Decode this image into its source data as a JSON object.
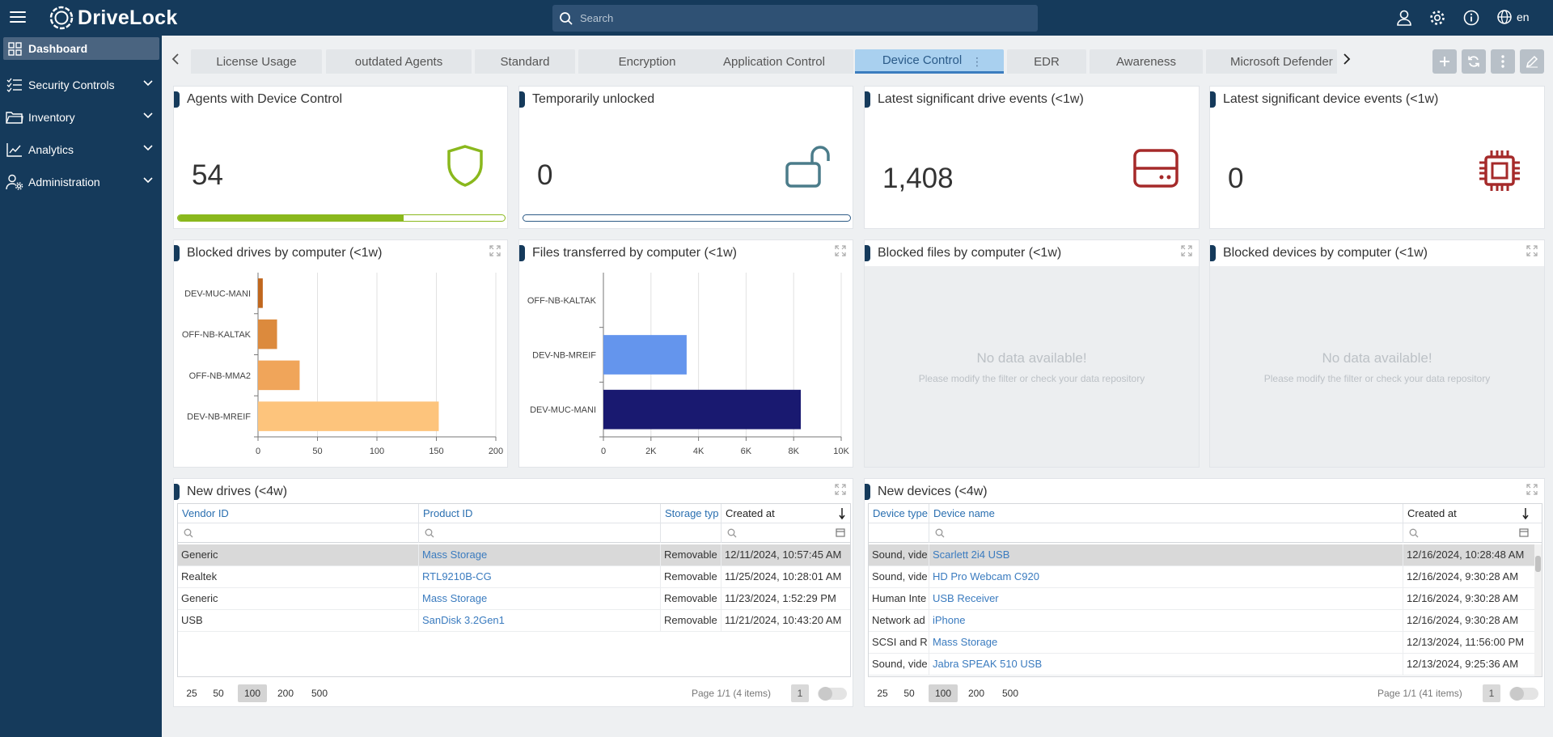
{
  "header": {
    "brand": "DriveLock",
    "search_placeholder": "Search",
    "language": "en",
    "icons": [
      "menu-icon",
      "user-icon",
      "gear-icon",
      "info-icon",
      "globe-icon",
      "search-icon"
    ]
  },
  "sidebar": {
    "items": [
      {
        "label": "Dashboard",
        "icon": "dashboard-icon",
        "active": true
      },
      {
        "label": "Security Controls",
        "icon": "checklist-icon"
      },
      {
        "label": "Inventory",
        "icon": "folder-icon"
      },
      {
        "label": "Analytics",
        "icon": "trend-icon"
      },
      {
        "label": "Administration",
        "icon": "user-gear-icon"
      }
    ]
  },
  "tabs": [
    {
      "label": "License Usage"
    },
    {
      "label": "outdated Agents"
    },
    {
      "label": "Standard"
    },
    {
      "label": "Encryption"
    },
    {
      "label": "Application Control"
    },
    {
      "label": "Device Control",
      "active": true
    },
    {
      "label": "EDR"
    },
    {
      "label": "Awareness"
    },
    {
      "label": "Microsoft Defender"
    }
  ],
  "toolbar": {
    "icons": [
      "plus-icon",
      "refresh-icon",
      "more-icon",
      "edit-icon"
    ]
  },
  "colors": {
    "accent": "#153a5b",
    "green": "#8ab81d",
    "teal": "#4b7c8a",
    "red": "#a52a2a"
  },
  "kpis": [
    {
      "title": "Agents with Device Control",
      "value": "54",
      "icon": "shield-icon",
      "progress": 0.69
    },
    {
      "title": "Temporarily unlocked",
      "value": "0",
      "icon": "unlock-icon",
      "progress": 0
    },
    {
      "title": "Latest significant drive events (<1w)",
      "value": "1,408",
      "icon": "drive-icon"
    },
    {
      "title": "Latest significant device events (<1w)",
      "value": "0",
      "icon": "chip-icon"
    }
  ],
  "charts": {
    "blocked_drives": {
      "title": "Blocked drives by computer (<1w)"
    },
    "files_transferred": {
      "title": "Files transferred by computer (<1w)"
    },
    "blocked_files": {
      "title": "Blocked files by computer (<1w)",
      "nodata": "No data available!",
      "nodata_hint": "Please modify the filter or check your data repository"
    },
    "blocked_devices": {
      "title": "Blocked devices by computer (<1w)",
      "nodata": "No data available!",
      "nodata_hint": "Please modify the filter or check your data repository"
    }
  },
  "chart_data": [
    {
      "type": "bar",
      "orientation": "horizontal",
      "title": "Blocked drives by computer (<1w)",
      "categories": [
        "DEV-MUC-MANI",
        "OFF-NB-KALTAK",
        "OFF-NB-MMA2",
        "DEV-NB-MREIF"
      ],
      "values": [
        4,
        16,
        35,
        152
      ],
      "colors": [
        "#c0671e",
        "#dc8a3d",
        "#f0a55a",
        "#fdc47c"
      ],
      "xticks": [
        "0",
        "50",
        "100",
        "150",
        "200"
      ],
      "xlim": [
        0,
        200
      ],
      "grid": true
    },
    {
      "type": "bar",
      "orientation": "horizontal",
      "title": "Files transferred by computer (<1w)",
      "categories": [
        "OFF-NB-KALTAK",
        "DEV-NB-MREIF",
        "DEV-MUC-MANI"
      ],
      "values": [
        0,
        3500,
        8300
      ],
      "colors": [
        "#6495ed",
        "#6495ed",
        "#191970"
      ],
      "xticks": [
        "0",
        "2K",
        "4K",
        "6K",
        "8K",
        "10K"
      ],
      "xlim": [
        0,
        10000
      ],
      "grid": true
    }
  ],
  "tables": {
    "drives": {
      "title": "New drives (<4w)",
      "columns": [
        "Vendor ID",
        "Product ID",
        "Storage typ",
        "Created at"
      ],
      "rows": [
        [
          "Generic",
          "Mass Storage",
          "Removable",
          "12/11/2024, 10:57:45 AM"
        ],
        [
          "Realtek",
          "RTL9210B-CG",
          "Removable",
          "11/25/2024, 10:28:01 AM"
        ],
        [
          "Generic",
          "Mass Storage",
          "Removable",
          "11/23/2024, 1:52:29 PM"
        ],
        [
          "USB",
          "SanDisk 3.2Gen1",
          "Removable",
          "11/21/2024, 10:43:20 AM"
        ]
      ],
      "page_sizes": [
        "25",
        "50",
        "100",
        "200",
        "500"
      ],
      "current_page_size": "100",
      "page_info": "Page 1/1 (4 items)",
      "page": "1"
    },
    "devices": {
      "title": "New devices (<4w)",
      "columns": [
        "Device type",
        "Device name",
        "Created at"
      ],
      "rows": [
        [
          "Sound, vide",
          "Scarlett 2i4 USB",
          "12/16/2024, 10:28:48 AM"
        ],
        [
          "Sound, vide",
          "HD Pro Webcam C920",
          "12/16/2024, 9:30:28 AM"
        ],
        [
          "Human Inte",
          "USB Receiver",
          "12/16/2024, 9:30:28 AM"
        ],
        [
          "Network ad",
          "iPhone",
          "12/16/2024, 9:30:28 AM"
        ],
        [
          "SCSI and R",
          "Mass Storage",
          "12/13/2024, 11:56:00 PM"
        ],
        [
          "Sound, vide",
          "Jabra SPEAK 510 USB",
          "12/13/2024, 9:25:36 AM"
        ]
      ],
      "page_sizes": [
        "25",
        "50",
        "100",
        "200",
        "500"
      ],
      "current_page_size": "100",
      "page_info": "Page 1/1 (41 items)",
      "page": "1"
    }
  }
}
